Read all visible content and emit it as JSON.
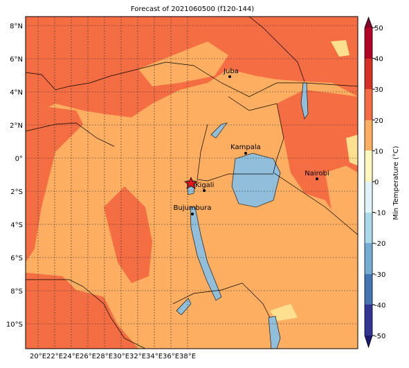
{
  "title": "Forecast of 2021060500 (f120-144)",
  "lon_labels": [
    "20°E",
    "22°E",
    "24°E",
    "26°E",
    "28°E",
    "30°E",
    "32°E",
    "34°E",
    "36°E",
    "38°E"
  ],
  "lat_labels": [
    "8°N",
    "6°N",
    "4°N",
    "2°N",
    "0°",
    "2°S",
    "4°S",
    "6°S",
    "8°S",
    "10°S"
  ],
  "cities": [
    "Juba",
    "Kampala",
    "Kigali",
    "Bujumbura",
    "Nairobi"
  ],
  "colorbar": {
    "label": "Min Temperature (°C)",
    "ticks": [
      50,
      40,
      30,
      20,
      10,
      0,
      -10,
      -20,
      -30,
      -40,
      -50
    ]
  }
}
